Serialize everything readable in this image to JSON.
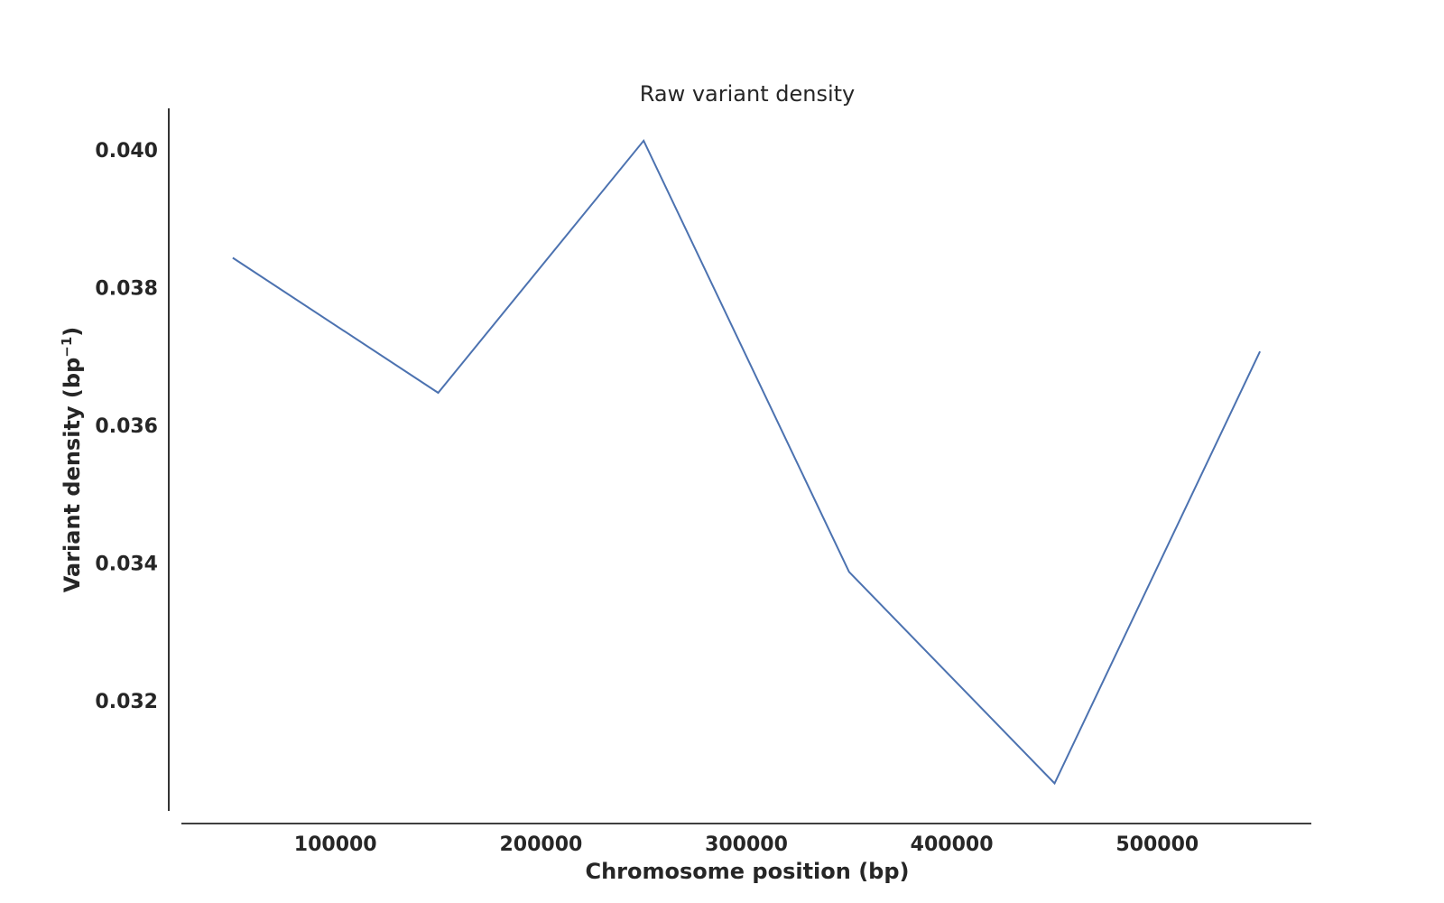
{
  "chart_data": {
    "type": "line",
    "title": "Raw variant density",
    "xlabel": "Chromosome position (bp)",
    "ylabel": "Variant density (bp",
    "ylabel_superscript": "−1",
    "ylabel_suffix": ")",
    "x": [
      50000,
      150000,
      250000,
      350000,
      450000,
      550000
    ],
    "series": [
      {
        "values": [
          0.03843,
          0.03647,
          0.04013,
          0.03387,
          0.0308,
          0.03707
        ],
        "color": "#4c72b0"
      }
    ],
    "x_ticks": [
      100000,
      200000,
      300000,
      400000,
      500000
    ],
    "x_tick_labels": [
      "100000",
      "200000",
      "300000",
      "400000",
      "500000"
    ],
    "y_ticks": [
      0.032,
      0.034,
      0.036,
      0.038,
      0.04
    ],
    "y_tick_labels": [
      "0.032",
      "0.034",
      "0.036",
      "0.038",
      "0.040"
    ],
    "xlim": [
      25000,
      575000
    ],
    "ylim": [
      0.0304,
      0.0406
    ],
    "grid": false,
    "legend": "none"
  }
}
